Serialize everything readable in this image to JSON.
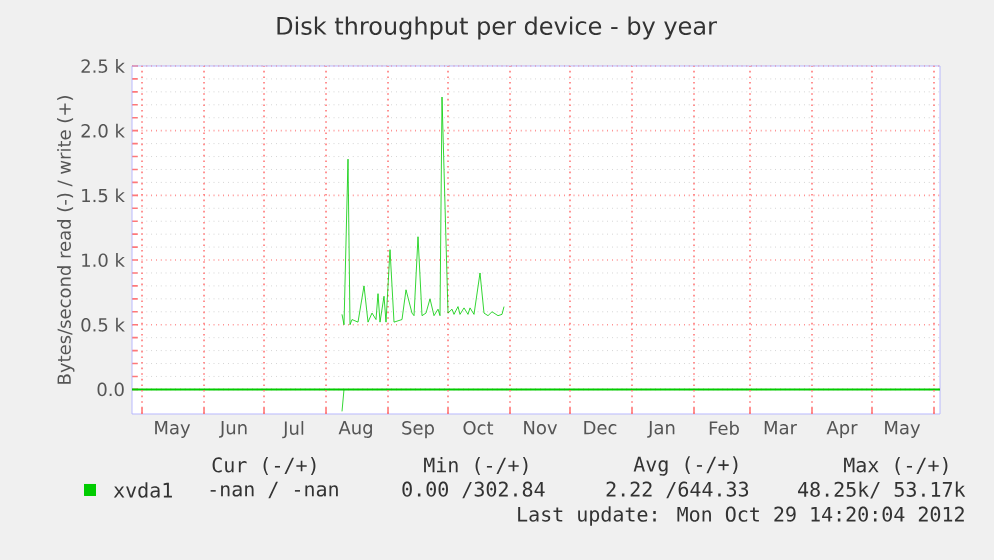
{
  "chart_data": {
    "type": "line",
    "title": "Disk throughput per device - by year",
    "ylabel": "Bytes/second read (-) / write (+)",
    "xlim": [
      "2012-04-26",
      "2013-06-04"
    ],
    "ylim": [
      -190,
      2500
    ],
    "xticks": [
      {
        "value": "2012-05-01",
        "label": null
      },
      {
        "value": "2012-06-01",
        "label": null
      },
      {
        "value": "2012-07-01",
        "label": null
      },
      {
        "value": "2012-08-01",
        "label": null
      },
      {
        "value": "2012-09-01",
        "label": null
      },
      {
        "value": "2012-10-01",
        "label": null
      },
      {
        "value": "2012-11-01",
        "label": null
      },
      {
        "value": "2012-12-01",
        "label": null
      },
      {
        "value": "2013-01-01",
        "label": null
      },
      {
        "value": "2013-02-01",
        "label": null
      },
      {
        "value": "2013-03-01",
        "label": null
      },
      {
        "value": "2013-04-01",
        "label": null
      },
      {
        "value": "2013-05-01",
        "label": null
      },
      {
        "value": "2013-06-01",
        "label": null
      },
      {
        "value": "2012-05-16",
        "label": "May"
      },
      {
        "value": "2012-06-16",
        "label": "Jun"
      },
      {
        "value": "2012-07-16",
        "label": "Jul"
      },
      {
        "value": "2012-08-16",
        "label": "Aug"
      },
      {
        "value": "2012-09-16",
        "label": "Sep"
      },
      {
        "value": "2012-10-16",
        "label": "Oct"
      },
      {
        "value": "2012-11-16",
        "label": "Nov"
      },
      {
        "value": "2012-12-16",
        "label": "Dec"
      },
      {
        "value": "2013-01-16",
        "label": "Jan"
      },
      {
        "value": "2013-02-16",
        "label": "Feb"
      },
      {
        "value": "2013-03-16",
        "label": "Mar"
      },
      {
        "value": "2013-04-16",
        "label": "Apr"
      },
      {
        "value": "2013-05-16",
        "label": "May"
      }
    ],
    "yticks": [
      {
        "value": 0,
        "label": "0.0"
      },
      {
        "value": 500,
        "label": "0.5 k"
      },
      {
        "value": 1000,
        "label": "1.0 k"
      },
      {
        "value": 1500,
        "label": "1.5 k"
      },
      {
        "value": 2000,
        "label": "2.0 k"
      },
      {
        "value": 2500,
        "label": "2.5 k"
      }
    ],
    "grid": true,
    "legend": "bottom",
    "ref_lines": [
      {
        "axis": "y",
        "value": 0,
        "color": "#00cc00"
      }
    ],
    "series": [
      {
        "name": "xvda1",
        "color": "#00cc00",
        "x": [
          "2012-08-09",
          "2012-08-10",
          "2012-08-12",
          "2012-08-13",
          "2012-08-14",
          "2012-08-17",
          "2012-08-20",
          "2012-08-22",
          "2012-08-24",
          "2012-08-26",
          "2012-08-27",
          "2012-08-28",
          "2012-08-30",
          "2012-08-31",
          "2012-09-02",
          "2012-09-04",
          "2012-09-08",
          "2012-09-10",
          "2012-09-13",
          "2012-09-14",
          "2012-09-16",
          "2012-09-18",
          "2012-09-20",
          "2012-09-22",
          "2012-09-24",
          "2012-09-26",
          "2012-09-27",
          "2012-09-28",
          "2012-10-01",
          "2012-10-03",
          "2012-10-04",
          "2012-10-06",
          "2012-10-07",
          "2012-10-09",
          "2012-10-11",
          "2012-10-12",
          "2012-10-14",
          "2012-10-17",
          "2012-10-19",
          "2012-10-21",
          "2012-10-23",
          "2012-10-26",
          "2012-10-28",
          "2012-10-29"
        ],
        "values": [
          580,
          500,
          1780,
          500,
          540,
          520,
          800,
          520,
          590,
          540,
          740,
          520,
          720,
          520,
          1080,
          520,
          540,
          770,
          590,
          570,
          1180,
          570,
          590,
          700,
          570,
          620,
          570,
          2260,
          590,
          620,
          580,
          640,
          580,
          630,
          580,
          630,
          580,
          900,
          590,
          570,
          600,
          570,
          580,
          640
        ]
      },
      {
        "color": "#00cc00",
        "x": [
          "2012-08-09",
          "2012-08-10"
        ],
        "values": [
          -170,
          0
        ]
      }
    ],
    "annotations": [
      "Cur (-/+)",
      "Min (-/+)",
      "Avg (-/+)",
      "Max (-/+)",
      "-nan / -nan",
      "0.00 /302.84",
      "2.22 /644.33",
      "48.25k/ 53.17k",
      "Last update: Mon Oct 29 14:20:04 2012"
    ]
  }
}
